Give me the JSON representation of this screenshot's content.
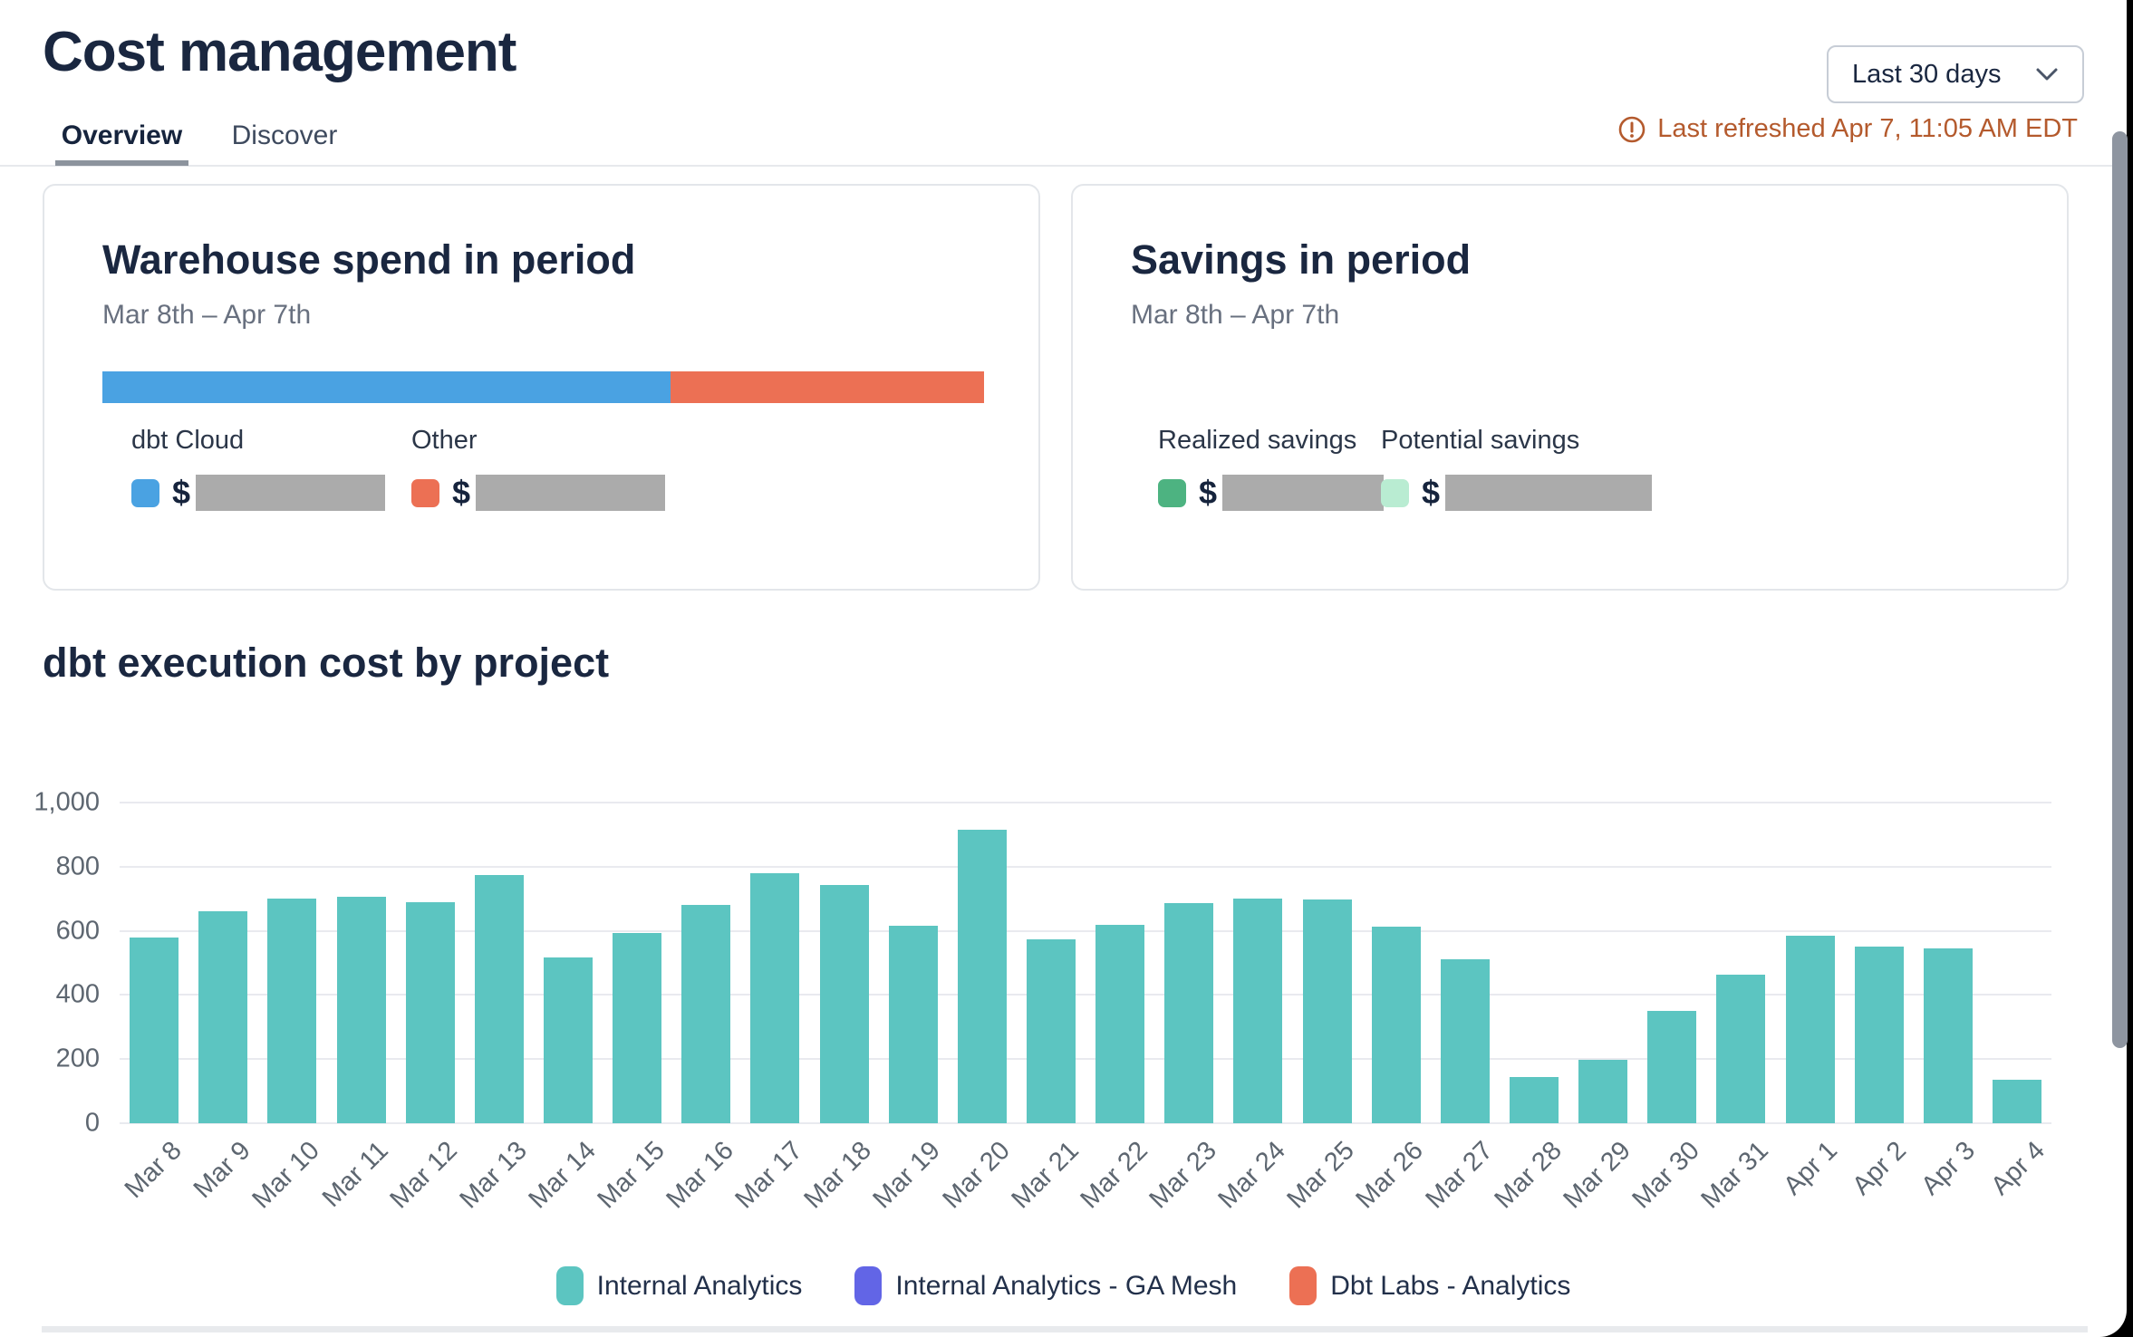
{
  "header": {
    "title": "Cost management",
    "date_range_selected": "Last 30 days",
    "last_refreshed": "Last refreshed Apr 7, 11:05 AM EDT",
    "refresh_color": "#b45a2d"
  },
  "tabs": [
    {
      "label": "Overview",
      "active": true
    },
    {
      "label": "Discover",
      "active": false
    }
  ],
  "warehouse_card": {
    "title": "Warehouse spend in period",
    "subtitle": "Mar 8th – Apr 7th",
    "currency_symbol": "$",
    "values_redacted": true,
    "segments": [
      {
        "label": "dbt Cloud",
        "color": "#4aa2e2",
        "share": 0.644
      },
      {
        "label": "Other",
        "color": "#ec7054",
        "share": 0.356
      }
    ]
  },
  "savings_card": {
    "title": "Savings in period",
    "subtitle": "Mar 8th – Apr 7th",
    "currency_symbol": "$",
    "values_redacted": true,
    "items": [
      {
        "label": "Realized savings",
        "color": "#4db381"
      },
      {
        "label": "Potential savings",
        "color": "#b9ecd2"
      }
    ]
  },
  "chart_section": {
    "title": "dbt execution cost by project"
  },
  "chart_data": {
    "type": "bar",
    "title": "dbt execution cost by project",
    "categories": [
      "Mar 8",
      "Mar 9",
      "Mar 10",
      "Mar 11",
      "Mar 12",
      "Mar 13",
      "Mar 14",
      "Mar 15",
      "Mar 16",
      "Mar 17",
      "Mar 18",
      "Mar 19",
      "Mar 20",
      "Mar 21",
      "Mar 22",
      "Mar 23",
      "Mar 24",
      "Mar 25",
      "Mar 26",
      "Mar 27",
      "Mar 28",
      "Mar 29",
      "Mar 30",
      "Mar 31",
      "Apr 1",
      "Apr 2",
      "Apr 3",
      "Apr 4"
    ],
    "values": [
      580,
      660,
      700,
      705,
      690,
      775,
      518,
      592,
      680,
      780,
      743,
      615,
      915,
      573,
      620,
      686,
      700,
      698,
      613,
      510,
      145,
      197,
      350,
      462,
      586,
      551,
      544,
      137
    ],
    "series_name": "Internal Analytics",
    "bar_color": "#5cc5c1",
    "xlabel": "",
    "ylabel": "",
    "ylim": [
      0,
      1000
    ],
    "yticks": [
      0,
      200,
      400,
      600,
      800,
      1000
    ],
    "ytick_labels": [
      "0",
      "200",
      "400",
      "600",
      "800",
      "1,000"
    ],
    "grid": true,
    "legend_position": "bottom",
    "legend": [
      {
        "label": "Internal Analytics",
        "color": "#5cc5c1"
      },
      {
        "label": "Internal Analytics - GA Mesh",
        "color": "#6265e6"
      },
      {
        "label": "Dbt Labs - Analytics",
        "color": "#ec7054"
      }
    ]
  }
}
